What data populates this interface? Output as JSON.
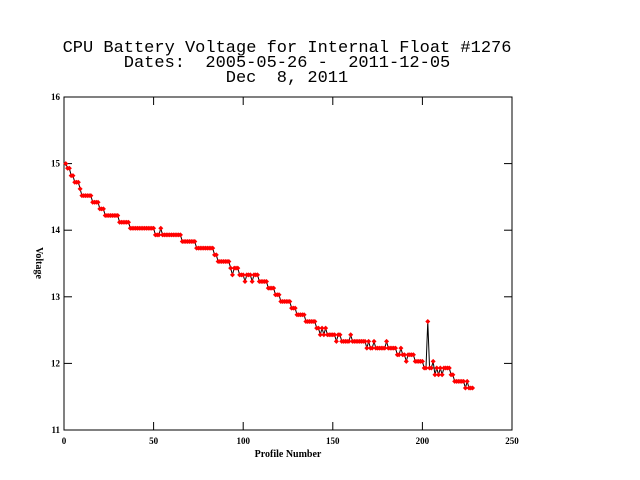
{
  "chart_data": {
    "type": "line",
    "title": "CPU Battery Voltage for Internal Float #1276",
    "subtitle": [
      "Dates:  2005-05-26 -  2011-12-05",
      "Dec  8, 2011"
    ],
    "x_label": "Profile Number",
    "y_label": "Voltage",
    "xlim": [
      0,
      250
    ],
    "xticks": [
      0,
      50,
      100,
      150,
      200,
      250
    ],
    "ylim": [
      11,
      16
    ],
    "yticks": [
      11,
      12,
      13,
      14,
      15,
      16
    ],
    "x": [
      1,
      2,
      3,
      4,
      5,
      6,
      7,
      8,
      9,
      10,
      11,
      12,
      13,
      14,
      15,
      16,
      17,
      18,
      19,
      20,
      21,
      22,
      23,
      24,
      25,
      26,
      27,
      28,
      29,
      30,
      31,
      32,
      33,
      34,
      35,
      36,
      37,
      38,
      39,
      40,
      41,
      42,
      43,
      44,
      45,
      46,
      47,
      48,
      49,
      50,
      51,
      52,
      53,
      54,
      55,
      56,
      57,
      58,
      59,
      60,
      61,
      62,
      63,
      64,
      65,
      66,
      67,
      68,
      69,
      70,
      71,
      72,
      73,
      74,
      75,
      76,
      77,
      78,
      79,
      80,
      81,
      82,
      83,
      84,
      85,
      86,
      87,
      88,
      89,
      90,
      91,
      92,
      93,
      94,
      95,
      96,
      97,
      98,
      99,
      100,
      101,
      102,
      103,
      104,
      105,
      106,
      107,
      108,
      109,
      110,
      111,
      112,
      113,
      114,
      115,
      116,
      117,
      118,
      119,
      120,
      121,
      122,
      123,
      124,
      125,
      126,
      127,
      128,
      129,
      130,
      131,
      132,
      133,
      134,
      135,
      136,
      137,
      138,
      139,
      140,
      141,
      142,
      143,
      144,
      145,
      146,
      147,
      148,
      149,
      150,
      151,
      152,
      153,
      154,
      155,
      156,
      157,
      158,
      159,
      160,
      161,
      162,
      163,
      164,
      165,
      166,
      167,
      168,
      169,
      170,
      171,
      172,
      173,
      174,
      175,
      176,
      177,
      178,
      179,
      180,
      181,
      182,
      183,
      184,
      185,
      186,
      187,
      188,
      189,
      190,
      191,
      192,
      193,
      194,
      195,
      196,
      197,
      198,
      199,
      200,
      201,
      202,
      203,
      204,
      205,
      206,
      207,
      208,
      209,
      210,
      211,
      212,
      213,
      214,
      215,
      216,
      217,
      218,
      219,
      220,
      221,
      222,
      223,
      224,
      225,
      226,
      227,
      228
    ],
    "series": [
      {
        "color": "#000000",
        "marker_color": "#ff0000",
        "values": [
          15.0,
          14.93,
          14.93,
          14.82,
          14.82,
          14.72,
          14.72,
          14.72,
          14.62,
          14.52,
          14.52,
          14.52,
          14.52,
          14.52,
          14.52,
          14.42,
          14.42,
          14.42,
          14.42,
          14.32,
          14.32,
          14.32,
          14.22,
          14.22,
          14.22,
          14.22,
          14.22,
          14.22,
          14.22,
          14.22,
          14.12,
          14.12,
          14.12,
          14.12,
          14.12,
          14.12,
          14.03,
          14.03,
          14.03,
          14.03,
          14.03,
          14.03,
          14.03,
          14.03,
          14.03,
          14.03,
          14.03,
          14.03,
          14.03,
          14.03,
          13.93,
          13.93,
          13.93,
          14.03,
          13.93,
          13.93,
          13.93,
          13.93,
          13.93,
          13.93,
          13.93,
          13.93,
          13.93,
          13.93,
          13.93,
          13.83,
          13.83,
          13.83,
          13.83,
          13.83,
          13.83,
          13.83,
          13.83,
          13.73,
          13.73,
          13.73,
          13.73,
          13.73,
          13.73,
          13.73,
          13.73,
          13.73,
          13.73,
          13.63,
          13.63,
          13.53,
          13.53,
          13.53,
          13.53,
          13.53,
          13.53,
          13.53,
          13.43,
          13.33,
          13.43,
          13.43,
          13.43,
          13.33,
          13.33,
          13.33,
          13.23,
          13.33,
          13.33,
          13.33,
          13.23,
          13.33,
          13.33,
          13.33,
          13.23,
          13.23,
          13.23,
          13.23,
          13.23,
          13.13,
          13.13,
          13.13,
          13.13,
          13.03,
          13.03,
          13.03,
          12.93,
          12.93,
          12.93,
          12.93,
          12.93,
          12.93,
          12.83,
          12.83,
          12.83,
          12.73,
          12.73,
          12.73,
          12.73,
          12.73,
          12.63,
          12.63,
          12.63,
          12.63,
          12.63,
          12.63,
          12.53,
          12.53,
          12.43,
          12.53,
          12.43,
          12.53,
          12.43,
          12.43,
          12.43,
          12.43,
          12.43,
          12.33,
          12.43,
          12.43,
          12.33,
          12.33,
          12.33,
          12.33,
          12.33,
          12.43,
          12.33,
          12.33,
          12.33,
          12.33,
          12.33,
          12.33,
          12.33,
          12.33,
          12.23,
          12.33,
          12.23,
          12.23,
          12.33,
          12.23,
          12.23,
          12.23,
          12.23,
          12.23,
          12.23,
          12.33,
          12.23,
          12.23,
          12.23,
          12.23,
          12.23,
          12.13,
          12.13,
          12.23,
          12.13,
          12.13,
          12.03,
          12.13,
          12.13,
          12.13,
          12.13,
          12.03,
          12.03,
          12.03,
          12.03,
          12.03,
          11.93,
          11.93,
          12.63,
          11.93,
          11.93,
          12.03,
          11.83,
          11.93,
          11.83,
          11.93,
          11.83,
          11.93,
          11.93,
          11.93,
          11.93,
          11.83,
          11.83,
          11.73,
          11.73,
          11.73,
          11.73,
          11.73,
          11.73,
          11.63,
          11.73,
          11.63,
          11.63,
          11.63
        ]
      }
    ]
  }
}
